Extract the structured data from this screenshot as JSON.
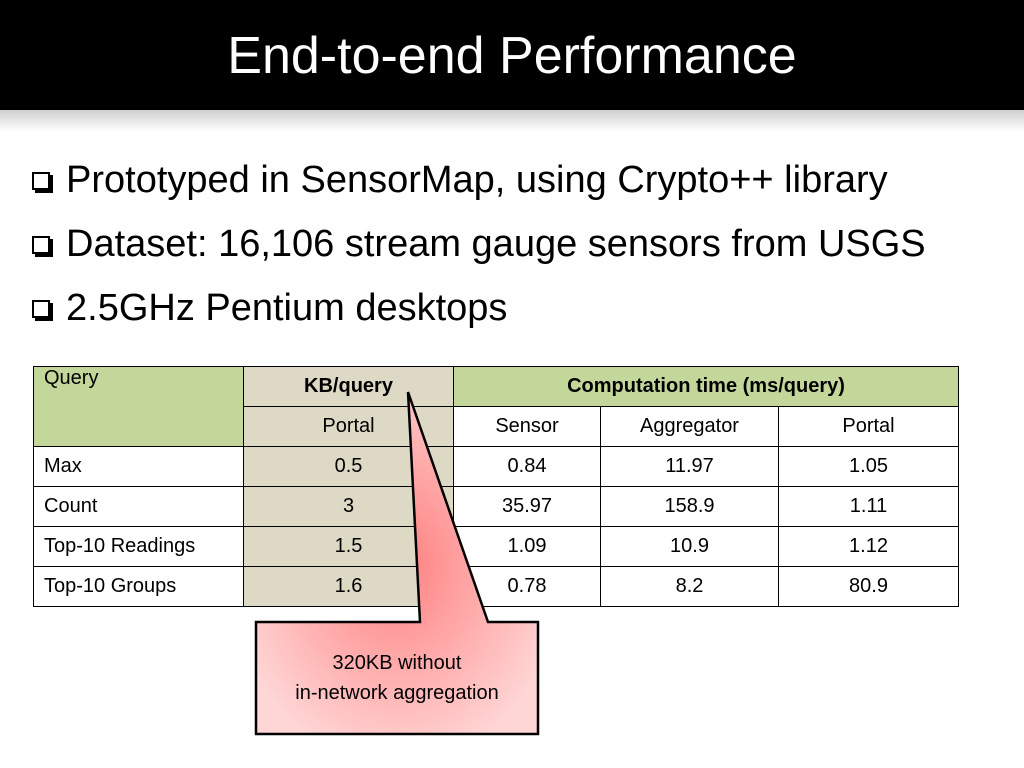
{
  "slide": {
    "title": "End-to-end Performance",
    "bullets": [
      "Prototyped in SensorMap, using Crypto++ library",
      "Dataset: 16,106 stream gauge sensors from USGS",
      "2.5GHz Pentium desktops"
    ]
  },
  "table": {
    "header": {
      "query": "Query",
      "kb": "KB/query",
      "computation": "Computation time (ms/query)"
    },
    "subheader": [
      "Portal",
      "Sensor",
      "Aggregator",
      "Portal"
    ],
    "rows": [
      [
        "Max",
        "0.5",
        "0.84",
        "11.97",
        "1.05"
      ],
      [
        "Count",
        "3",
        "35.97",
        "158.9",
        "1.11"
      ],
      [
        "Top-10 Readings",
        "1.5",
        "1.09",
        "10.9",
        "1.12"
      ],
      [
        "Top-10 Groups",
        "1.6",
        "0.78",
        "8.2",
        "80.9"
      ]
    ]
  },
  "callout": {
    "line1": "320KB without",
    "line2": "in-network aggregation"
  },
  "colors": {
    "header_green": "#c4d79b",
    "column_tan": "#ddd9c4",
    "callout_red": "#ff8080"
  }
}
